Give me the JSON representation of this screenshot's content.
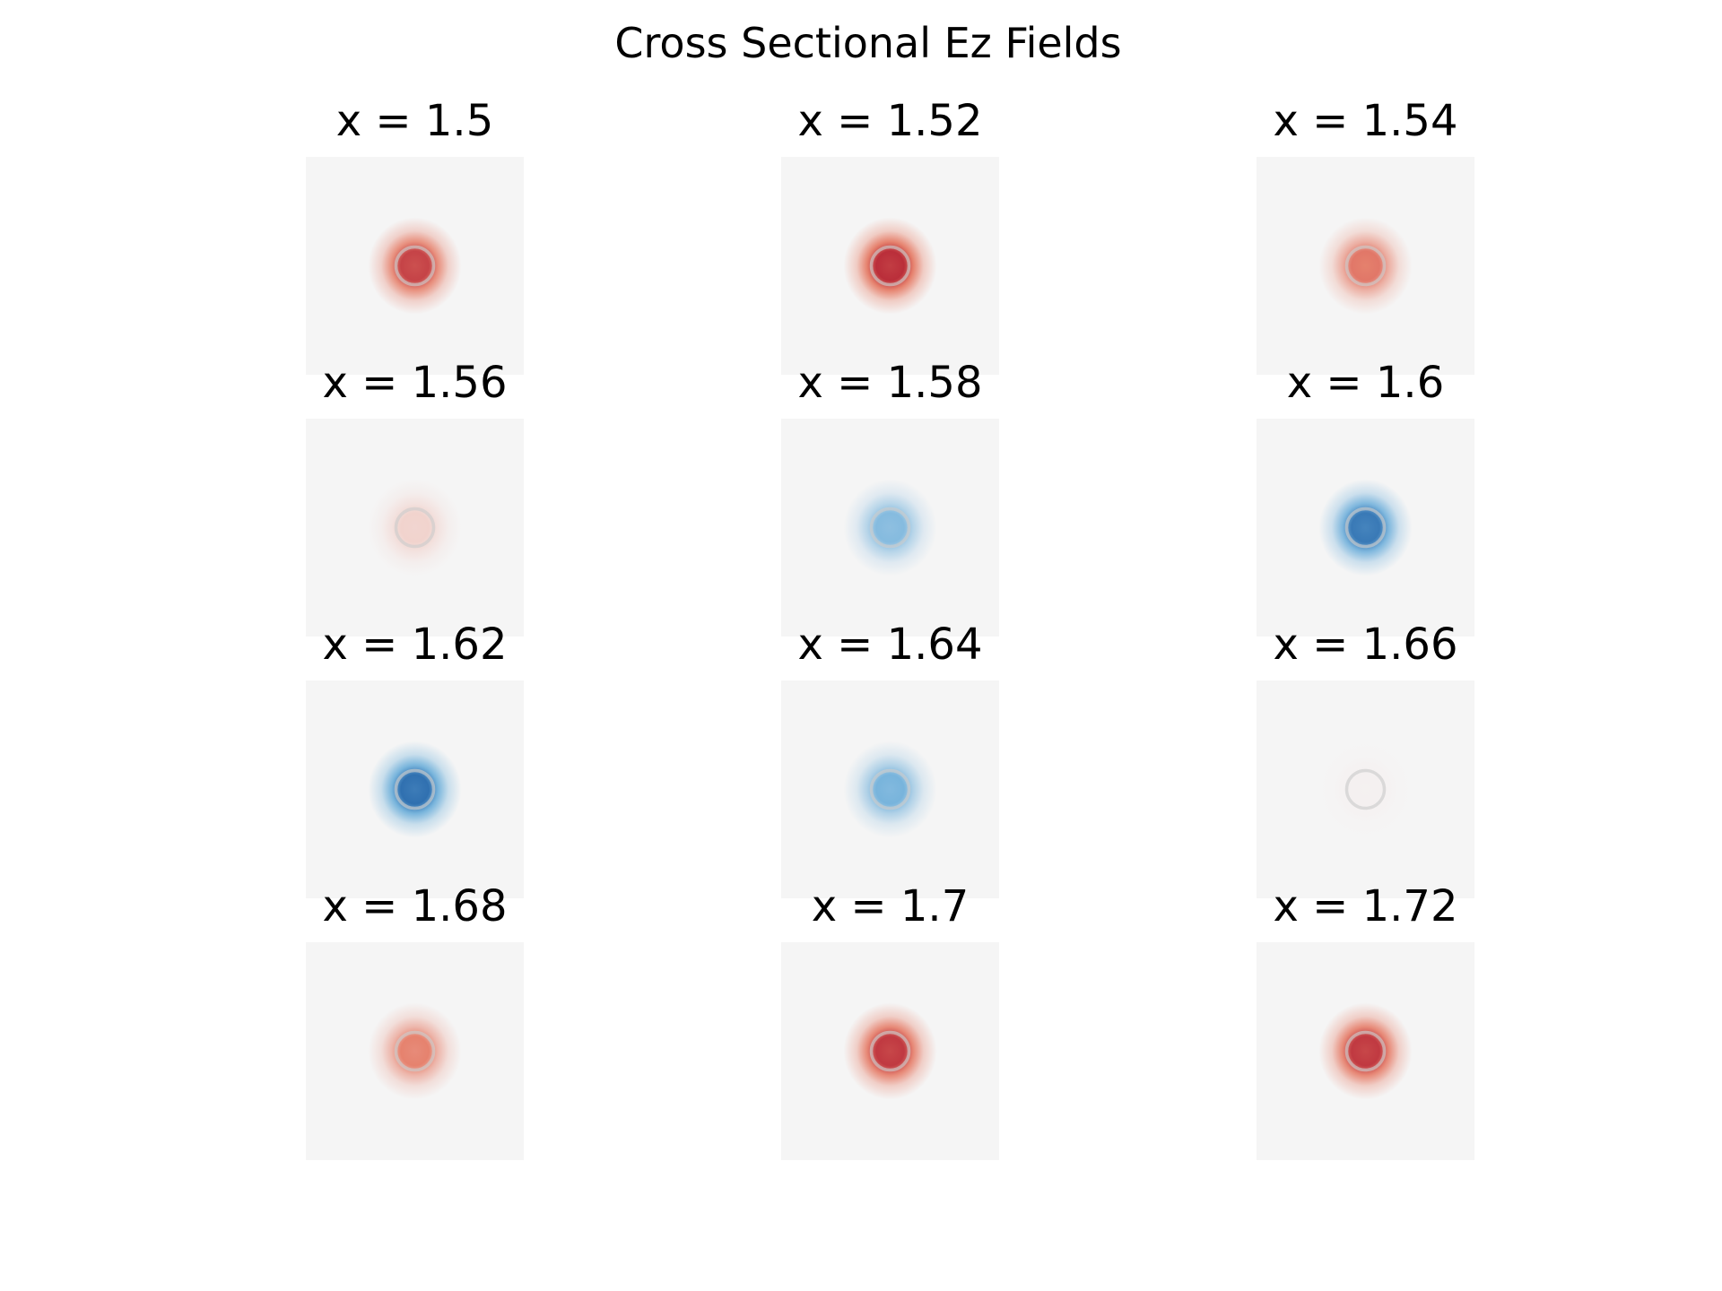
{
  "chart_data": {
    "type": "heatmap",
    "title": "Cross Sectional Ez Fields",
    "colormap": "RdBu_r",
    "value_range": [
      -1,
      1
    ],
    "layout": {
      "rows": 4,
      "cols": 3
    },
    "background_color": "#f5f5f5",
    "ring_color": "#cccccc",
    "panels": [
      {
        "label": "x = 1.5",
        "x": 1.5,
        "amplitude": 0.8
      },
      {
        "label": "x = 1.52",
        "x": 1.52,
        "amplitude": 0.9
      },
      {
        "label": "x = 1.54",
        "x": 1.54,
        "amplitude": 0.55
      },
      {
        "label": "x = 1.56",
        "x": 1.56,
        "amplitude": 0.15
      },
      {
        "label": "x = 1.58",
        "x": 1.58,
        "amplitude": -0.45
      },
      {
        "label": "x = 1.6",
        "x": 1.6,
        "amplitude": -0.85
      },
      {
        "label": "x = 1.62",
        "x": 1.62,
        "amplitude": -0.9
      },
      {
        "label": "x = 1.64",
        "x": 1.64,
        "amplitude": -0.5
      },
      {
        "label": "x = 1.66",
        "x": 1.66,
        "amplitude": 0.02
      },
      {
        "label": "x = 1.68",
        "x": 1.68,
        "amplitude": 0.5
      },
      {
        "label": "x = 1.7",
        "x": 1.7,
        "amplitude": 0.85
      },
      {
        "label": "x = 1.72",
        "x": 1.72,
        "amplitude": 0.85
      }
    ]
  }
}
